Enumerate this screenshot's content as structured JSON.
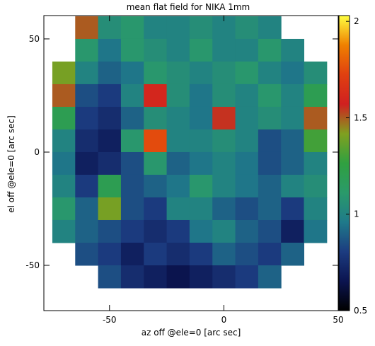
{
  "chart_data": {
    "type": "heatmap",
    "title": "mean flat field for NIKA 1mm",
    "xlabel": "az off @ele=0 [arc sec]",
    "ylabel": "el off @ele=0 [arc sec]",
    "x": [
      -70,
      -60,
      -50,
      -40,
      -30,
      -20,
      -10,
      0,
      10,
      20,
      30,
      40
    ],
    "y": [
      55,
      45,
      35,
      25,
      15,
      5,
      -5,
      -15,
      -25,
      -35,
      -45,
      -55
    ],
    "z": [
      [
        null,
        1.5,
        1.05,
        1.1,
        1.0,
        1.0,
        1.05,
        1.0,
        1.05,
        1.0,
        null,
        null
      ],
      [
        null,
        1.1,
        0.95,
        1.1,
        1.05,
        1.0,
        1.1,
        1.0,
        1.0,
        1.1,
        1.0,
        null
      ],
      [
        1.4,
        1.0,
        0.9,
        0.95,
        1.1,
        1.05,
        1.0,
        1.05,
        1.1,
        1.0,
        0.95,
        1.05
      ],
      [
        1.5,
        0.85,
        0.8,
        1.0,
        1.6,
        1.05,
        0.95,
        1.05,
        1.0,
        1.1,
        1.0,
        1.2
      ],
      [
        1.2,
        0.8,
        0.75,
        0.9,
        1.05,
        1.0,
        0.95,
        1.55,
        1.0,
        1.05,
        1.0,
        1.5
      ],
      [
        1.0,
        0.75,
        0.7,
        1.1,
        1.75,
        1.0,
        1.0,
        1.05,
        1.0,
        0.85,
        0.9,
        1.3
      ],
      [
        0.95,
        0.7,
        0.75,
        0.85,
        1.1,
        0.9,
        0.95,
        1.0,
        0.95,
        0.85,
        0.9,
        1.0
      ],
      [
        1.0,
        0.8,
        1.2,
        0.85,
        0.9,
        0.95,
        1.1,
        1.0,
        0.95,
        0.9,
        1.0,
        1.05
      ],
      [
        1.1,
        0.9,
        1.4,
        0.85,
        0.8,
        1.0,
        1.0,
        0.9,
        0.85,
        0.9,
        0.8,
        1.0
      ],
      [
        1.0,
        0.9,
        0.85,
        0.8,
        0.75,
        0.8,
        0.95,
        1.0,
        0.9,
        0.85,
        0.7,
        0.95
      ],
      [
        null,
        0.85,
        0.8,
        0.7,
        0.8,
        0.75,
        0.8,
        0.9,
        0.85,
        0.8,
        0.9,
        null
      ],
      [
        null,
        null,
        0.85,
        0.75,
        0.7,
        0.65,
        0.7,
        0.75,
        0.8,
        0.9,
        null,
        null
      ]
    ],
    "xlim": [
      -78.7,
      50
    ],
    "ylim": [
      -70,
      60.3
    ],
    "xticks": [
      -50,
      0,
      50
    ],
    "yticks": [
      -50,
      0,
      50
    ],
    "clim": [
      0.5,
      2.03
    ],
    "cticks": [
      0.5,
      1,
      1.5,
      2
    ],
    "colormap": [
      "#000000",
      "#0b1450",
      "#1c3c80",
      "#1f7a8a",
      "#2a9a6a",
      "#30a040",
      "#80a020",
      "#d02020",
      "#e04010",
      "#f08000",
      "#ffff40"
    ]
  }
}
